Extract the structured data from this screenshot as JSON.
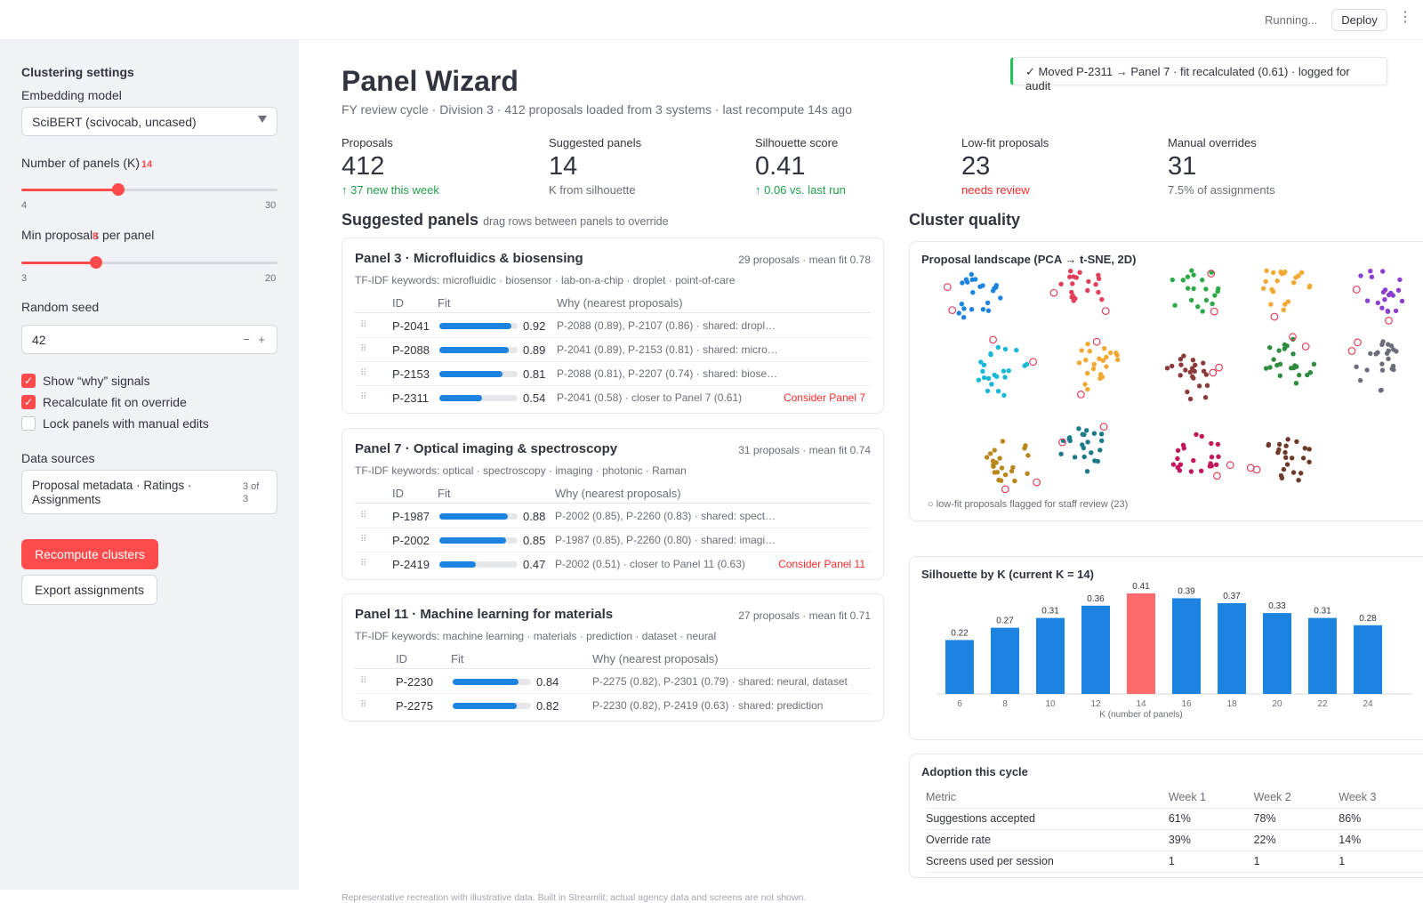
{
  "topbar": {
    "status": "Running...",
    "deploy": "Deploy",
    "menu": "⋮"
  },
  "sidebar": {
    "heading": "Clustering settings",
    "embedding_label": "Embedding model",
    "embedding_value": "SciBERT (scivocab, uncased)",
    "panels_label": "Number of panels (K)",
    "panels_value": "14",
    "panels_min": "4",
    "panels_max": "30",
    "panels_fraction": 0.38,
    "minprop_label": "Min proposals per panel",
    "minprop_value": "8",
    "minprop_min": "3",
    "minprop_max": "20",
    "minprop_fraction": 0.29,
    "seed_label": "Random seed",
    "seed_value": "42",
    "seed_controls": "− +",
    "checks": [
      {
        "label": "Show “why” signals",
        "checked": true
      },
      {
        "label": "Recalculate fit on override",
        "checked": true
      },
      {
        "label": "Lock panels with manual edits",
        "checked": false
      }
    ],
    "sources_label": "Data sources",
    "sources_value": "Proposal metadata · Ratings · Assignments",
    "sources_count": "3 of 3",
    "recompute": "Recompute clusters",
    "export": "Export assignments"
  },
  "main": {
    "title": "Panel Wizard",
    "subtitle": "FY review cycle · Division 3 · 412 proposals loaded from 3 systems · last recompute 14s ago",
    "toast": "✓ Moved P-2311 → Panel 7 · fit recalculated (0.61) · logged for audit",
    "metrics": [
      {
        "label": "Proposals",
        "value": "412",
        "delta": "↑ 37 new this week",
        "tone": "green"
      },
      {
        "label": "Suggested panels",
        "value": "14",
        "delta": "K from silhouette",
        "tone": "gray"
      },
      {
        "label": "Silhouette score",
        "value": "0.41",
        "delta": "↑ 0.06 vs. last run",
        "tone": "green"
      },
      {
        "label": "Low-fit proposals",
        "value": "23",
        "delta": "needs review",
        "tone": "red"
      },
      {
        "label": "Manual overrides",
        "value": "31",
        "delta": "7.5% of assignments",
        "tone": "gray"
      }
    ],
    "panels_title": "Suggested panels",
    "panels_caption": "drag rows between panels to override",
    "col_id": "ID",
    "col_fit": "Fit",
    "col_why": "Why (nearest proposals)",
    "panels": [
      {
        "title": "Panel 3 · Microfluidics & biosensing",
        "meta": "29 proposals · mean fit 0.78",
        "keywords": "TF-IDF keywords: microfluidic · biosensor · lab-on-a-chip · droplet · point-of-care",
        "rows": [
          {
            "id": "P-2041",
            "fit": 0.92,
            "fit_label": "0.92",
            "why": "P-2088 (0.89), P-2107 (0.86) · shared: dropl…",
            "suggest": ""
          },
          {
            "id": "P-2088",
            "fit": 0.89,
            "fit_label": "0.89",
            "why": "P-2041 (0.89), P-2153 (0.81) · shared: micro…",
            "suggest": ""
          },
          {
            "id": "P-2153",
            "fit": 0.81,
            "fit_label": "0.81",
            "why": "P-2088 (0.81), P-2207 (0.74) · shared: biose…",
            "suggest": ""
          },
          {
            "id": "P-2311",
            "fit": 0.54,
            "fit_label": "0.54",
            "why": "P-2041 (0.58) · closer to Panel 7 (0.61)",
            "suggest": "Consider Panel 7"
          }
        ]
      },
      {
        "title": "Panel 7 · Optical imaging & spectroscopy",
        "meta": "31 proposals · mean fit 0.74",
        "keywords": "TF-IDF keywords: optical · spectroscopy · imaging · photonic · Raman",
        "rows": [
          {
            "id": "P-1987",
            "fit": 0.88,
            "fit_label": "0.88",
            "why": "P-2002 (0.85), P-2260 (0.83) · shared: spect…",
            "suggest": ""
          },
          {
            "id": "P-2002",
            "fit": 0.85,
            "fit_label": "0.85",
            "why": "P-1987 (0.85), P-2260 (0.80) · shared: imagi…",
            "suggest": ""
          },
          {
            "id": "P-2419",
            "fit": 0.47,
            "fit_label": "0.47",
            "why": "P-2002 (0.51) · closer to Panel 11 (0.63)",
            "suggest": "Consider Panel 11"
          }
        ]
      },
      {
        "title": "Panel 11 · Machine learning for materials",
        "meta": "27 proposals · mean fit 0.71",
        "keywords": "TF-IDF keywords: machine learning · materials · prediction · dataset · neural",
        "rows": [
          {
            "id": "P-2230",
            "fit": 0.84,
            "fit_label": "0.84",
            "why": "P-2275 (0.82), P-2301 (0.79) · shared: neural, dataset",
            "suggest": ""
          },
          {
            "id": "P-2275",
            "fit": 0.82,
            "fit_label": "0.82",
            "why": "P-2230 (0.82), P-2419 (0.63) · shared: prediction",
            "suggest": ""
          }
        ]
      }
    ],
    "quality_title": "Cluster quality",
    "landscape_title": "Proposal landscape (PCA → t-SNE, 2D)",
    "landscape_note": "○ low-fit proposals flagged for staff review (23)",
    "cluster_colors": [
      "#1c83e1",
      "#e0405a",
      "#2eaa4a",
      "#f2a832",
      "#8a3fd1",
      "#19b8d6",
      "#f2a832",
      "#8b3a3a",
      "#2e8b3f",
      "#6b6e7a",
      "#b8861a",
      "#1a7a8a",
      "#c2185b",
      "#6d3a2a"
    ],
    "silhouette_title": "Silhouette by K (current K = 14)",
    "silhouette_xlabel": "K (number of panels)",
    "chart_data": {
      "type": "bar",
      "categories": [
        "6",
        "8",
        "10",
        "12",
        "14",
        "16",
        "18",
        "20",
        "22",
        "24"
      ],
      "values": [
        0.22,
        0.27,
        0.31,
        0.36,
        0.41,
        0.39,
        0.37,
        0.33,
        0.31,
        0.28
      ],
      "labels": [
        "0.22",
        "0.27",
        "0.31",
        "0.36",
        "0.41",
        "0.39",
        "0.37",
        "0.33",
        "0.31",
        "0.28"
      ],
      "highlight": "14",
      "title": "Silhouette by K (current K = 14)",
      "xlabel": "K (number of panels)",
      "ylim": [
        0,
        0.45
      ],
      "colors": {
        "bar": "#1c83e1",
        "highlight": "#ff6b6b"
      }
    },
    "adoption_title": "Adoption this cycle",
    "adoption_header": [
      "Metric",
      "Week 1",
      "Week 2",
      "Week 3"
    ],
    "adoption_rows": [
      [
        "Suggestions accepted",
        "61%",
        "78%",
        "86%"
      ],
      [
        "Override rate",
        "39%",
        "22%",
        "14%"
      ],
      [
        "Screens used per session",
        "1",
        "1",
        "1"
      ]
    ],
    "footer": "Representative recreation with illustrative data. Built in Streamlit; actual agency data and screens are not shown."
  }
}
